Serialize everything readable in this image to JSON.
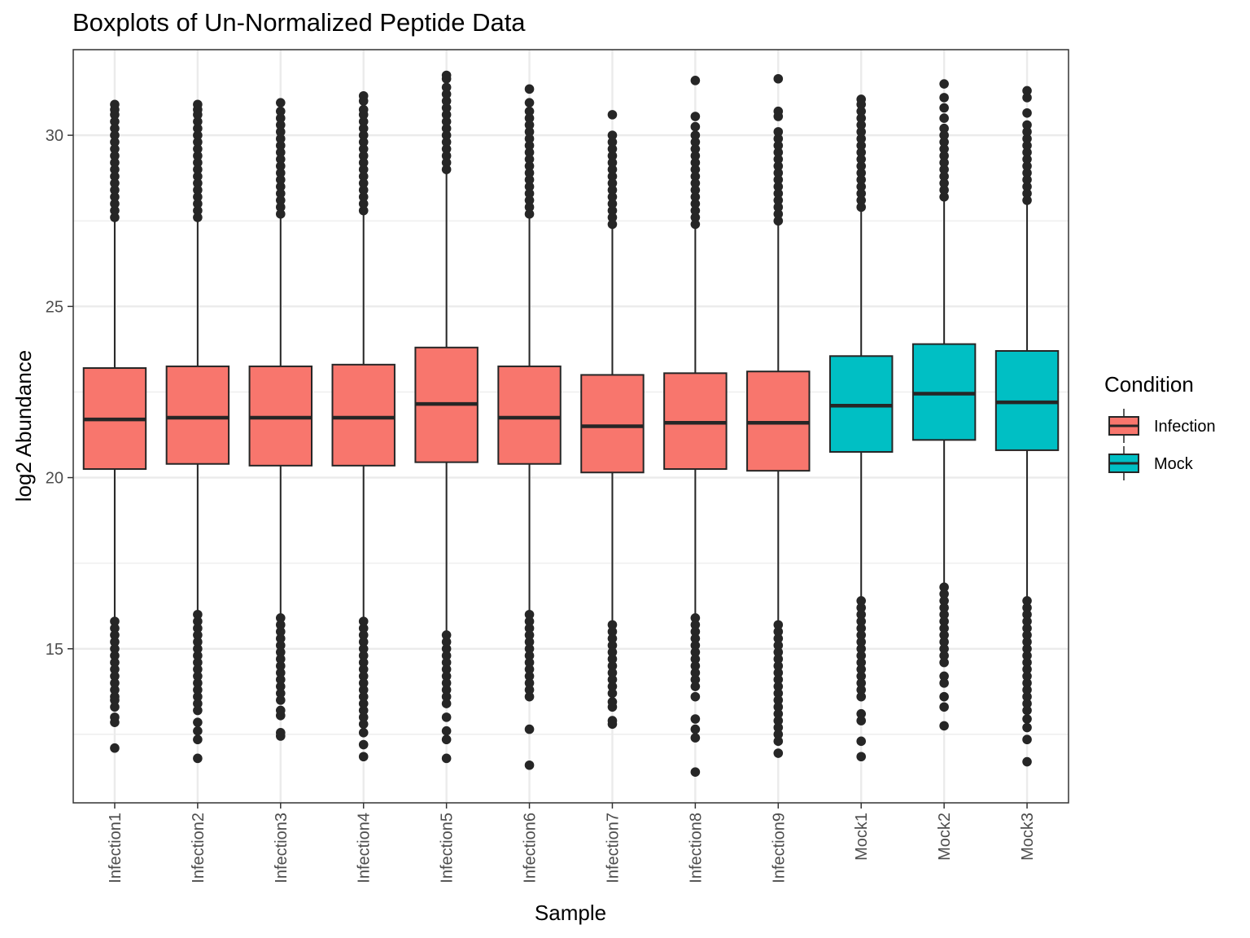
{
  "chart_data": {
    "type": "boxplot",
    "title": "Boxplots of Un-Normalized Peptide Data",
    "xlabel": "Sample",
    "ylabel": "log2 Abundance",
    "ylim": [
      10.5,
      32.5
    ],
    "y_ticks": [
      15,
      20,
      25,
      30
    ],
    "y_minor_ticks": [
      12.5,
      17.5,
      22.5,
      27.5,
      32.5
    ],
    "grid": true,
    "legend": {
      "title": "Condition",
      "placement": "right",
      "entries": [
        {
          "name": "Infection",
          "color": "#F8766D"
        },
        {
          "name": "Mock",
          "color": "#00BFC4"
        }
      ]
    },
    "categories": [
      "Infection1",
      "Infection2",
      "Infection3",
      "Infection4",
      "Infection5",
      "Infection6",
      "Infection7",
      "Infection8",
      "Infection9",
      "Mock1",
      "Mock2",
      "Mock3"
    ],
    "condition": [
      "Infection",
      "Infection",
      "Infection",
      "Infection",
      "Infection",
      "Infection",
      "Infection",
      "Infection",
      "Infection",
      "Mock",
      "Mock",
      "Mock"
    ],
    "boxes": [
      {
        "q1": 20.25,
        "median": 21.7,
        "q3": 23.2,
        "whisker_low": 15.85,
        "whisker_high": 27.55,
        "outliers_low": [
          15.8,
          15.6,
          15.4,
          15.2,
          15.0,
          14.8,
          14.6,
          14.4,
          14.2,
          14.0,
          13.8,
          13.6,
          13.5,
          13.3,
          13.0,
          12.85,
          12.1
        ],
        "outliers_high": [
          27.6,
          27.8,
          28.0,
          28.2,
          28.4,
          28.6,
          28.8,
          29.0,
          29.2,
          29.4,
          29.6,
          29.8,
          30.0,
          30.2,
          30.4,
          30.6,
          30.75,
          30.9
        ]
      },
      {
        "q1": 20.4,
        "median": 21.75,
        "q3": 23.25,
        "whisker_low": 16.05,
        "whisker_high": 27.5,
        "outliers_low": [
          16.0,
          15.8,
          15.6,
          15.4,
          15.2,
          15.0,
          14.8,
          14.6,
          14.4,
          14.2,
          14.0,
          13.8,
          13.6,
          13.4,
          13.2,
          12.85,
          12.6,
          12.35,
          11.8
        ],
        "outliers_high": [
          27.6,
          27.8,
          28.0,
          28.2,
          28.4,
          28.6,
          28.8,
          29.0,
          29.2,
          29.4,
          29.6,
          29.8,
          30.0,
          30.2,
          30.4,
          30.6,
          30.75,
          30.9
        ]
      },
      {
        "q1": 20.35,
        "median": 21.75,
        "q3": 23.25,
        "whisker_low": 15.95,
        "whisker_high": 27.6,
        "outliers_low": [
          15.9,
          15.7,
          15.5,
          15.3,
          15.1,
          14.9,
          14.7,
          14.5,
          14.3,
          14.1,
          13.9,
          13.7,
          13.5,
          13.2,
          13.05,
          12.55,
          12.45
        ],
        "outliers_high": [
          27.7,
          27.9,
          28.1,
          28.3,
          28.5,
          28.7,
          28.9,
          29.1,
          29.3,
          29.5,
          29.7,
          29.9,
          30.1,
          30.3,
          30.5,
          30.7,
          30.95
        ]
      },
      {
        "q1": 20.35,
        "median": 21.75,
        "q3": 23.3,
        "whisker_low": 15.85,
        "whisker_high": 27.75,
        "outliers_low": [
          15.8,
          15.6,
          15.4,
          15.2,
          15.0,
          14.8,
          14.6,
          14.4,
          14.2,
          14.0,
          13.8,
          13.6,
          13.4,
          13.2,
          13.0,
          12.8,
          12.55,
          12.2,
          11.85
        ],
        "outliers_high": [
          27.8,
          28.0,
          28.2,
          28.4,
          28.6,
          28.8,
          29.0,
          29.2,
          29.4,
          29.6,
          29.8,
          30.0,
          30.2,
          30.4,
          30.6,
          30.75,
          31.0,
          31.15
        ]
      },
      {
        "q1": 20.45,
        "median": 22.15,
        "q3": 23.8,
        "whisker_low": 15.45,
        "whisker_high": 28.9,
        "outliers_low": [
          15.4,
          15.2,
          15.0,
          14.8,
          14.6,
          14.4,
          14.2,
          14.0,
          13.8,
          13.6,
          13.4,
          13.0,
          12.6,
          12.35,
          11.8
        ],
        "outliers_high": [
          29.0,
          29.2,
          29.4,
          29.6,
          29.8,
          30.0,
          30.2,
          30.4,
          30.6,
          30.8,
          31.0,
          31.2,
          31.4,
          31.65,
          31.75
        ]
      },
      {
        "q1": 20.4,
        "median": 21.75,
        "q3": 23.25,
        "whisker_low": 16.1,
        "whisker_high": 27.65,
        "outliers_low": [
          16.0,
          15.8,
          15.6,
          15.4,
          15.2,
          15.0,
          14.8,
          14.6,
          14.4,
          14.2,
          14.0,
          13.8,
          13.6,
          12.65,
          11.6
        ],
        "outliers_high": [
          27.7,
          27.9,
          28.1,
          28.3,
          28.5,
          28.7,
          28.9,
          29.1,
          29.3,
          29.5,
          29.7,
          29.9,
          30.1,
          30.3,
          30.5,
          30.7,
          30.95,
          31.35
        ]
      },
      {
        "q1": 20.15,
        "median": 21.5,
        "q3": 23.0,
        "whisker_low": 15.75,
        "whisker_high": 27.35,
        "outliers_low": [
          15.7,
          15.5,
          15.3,
          15.1,
          14.9,
          14.7,
          14.5,
          14.3,
          14.1,
          13.9,
          13.7,
          13.45,
          13.3,
          12.9,
          12.8
        ],
        "outliers_high": [
          27.4,
          27.6,
          27.8,
          28.0,
          28.2,
          28.4,
          28.6,
          28.8,
          29.0,
          29.2,
          29.4,
          29.6,
          29.8,
          30.0,
          30.6
        ]
      },
      {
        "q1": 20.25,
        "median": 21.6,
        "q3": 23.05,
        "whisker_low": 15.95,
        "whisker_high": 27.35,
        "outliers_low": [
          15.9,
          15.7,
          15.5,
          15.3,
          15.1,
          14.9,
          14.7,
          14.5,
          14.3,
          14.1,
          13.9,
          13.6,
          12.95,
          12.65,
          12.4,
          11.4
        ],
        "outliers_high": [
          27.4,
          27.6,
          27.8,
          28.0,
          28.2,
          28.4,
          28.6,
          28.8,
          29.0,
          29.2,
          29.4,
          29.6,
          29.8,
          30.0,
          30.25,
          30.55,
          31.6
        ]
      },
      {
        "q1": 20.2,
        "median": 21.6,
        "q3": 23.1,
        "whisker_low": 15.75,
        "whisker_high": 27.45,
        "outliers_low": [
          15.7,
          15.5,
          15.3,
          15.1,
          14.9,
          14.7,
          14.5,
          14.3,
          14.1,
          13.9,
          13.7,
          13.5,
          13.3,
          13.1,
          12.9,
          12.7,
          12.5,
          12.3,
          11.95
        ],
        "outliers_high": [
          27.5,
          27.7,
          27.9,
          28.1,
          28.3,
          28.5,
          28.7,
          28.9,
          29.1,
          29.3,
          29.5,
          29.7,
          29.9,
          30.1,
          30.55,
          30.7,
          31.65
        ]
      },
      {
        "q1": 20.75,
        "median": 22.1,
        "q3": 23.55,
        "whisker_low": 16.45,
        "whisker_high": 27.8,
        "outliers_low": [
          16.4,
          16.2,
          16.0,
          15.8,
          15.6,
          15.4,
          15.2,
          15.0,
          14.8,
          14.6,
          14.4,
          14.2,
          14.0,
          13.8,
          13.6,
          13.1,
          12.9,
          12.3,
          11.85
        ],
        "outliers_high": [
          27.9,
          28.1,
          28.3,
          28.5,
          28.7,
          28.9,
          29.1,
          29.3,
          29.5,
          29.7,
          29.9,
          30.1,
          30.3,
          30.5,
          30.7,
          30.9,
          31.05
        ]
      },
      {
        "q1": 21.1,
        "median": 22.45,
        "q3": 23.9,
        "whisker_low": 16.85,
        "whisker_high": 28.1,
        "outliers_low": [
          16.8,
          16.6,
          16.4,
          16.2,
          16.0,
          15.8,
          15.6,
          15.4,
          15.2,
          15.0,
          14.8,
          14.6,
          14.2,
          14.0,
          13.6,
          13.3,
          12.75
        ],
        "outliers_high": [
          28.2,
          28.4,
          28.6,
          28.8,
          29.0,
          29.2,
          29.4,
          29.6,
          29.8,
          30.0,
          30.2,
          30.5,
          30.8,
          31.1,
          31.5
        ]
      },
      {
        "q1": 20.8,
        "median": 22.2,
        "q3": 23.7,
        "whisker_low": 16.45,
        "whisker_high": 28.05,
        "outliers_low": [
          16.4,
          16.2,
          16.0,
          15.8,
          15.6,
          15.4,
          15.2,
          15.0,
          14.8,
          14.6,
          14.4,
          14.2,
          14.0,
          13.8,
          13.6,
          13.4,
          13.2,
          12.95,
          12.7,
          12.35,
          11.7
        ],
        "outliers_high": [
          28.1,
          28.3,
          28.5,
          28.7,
          28.9,
          29.1,
          29.3,
          29.5,
          29.7,
          29.9,
          30.1,
          30.3,
          30.65,
          31.1,
          31.3
        ]
      }
    ]
  }
}
